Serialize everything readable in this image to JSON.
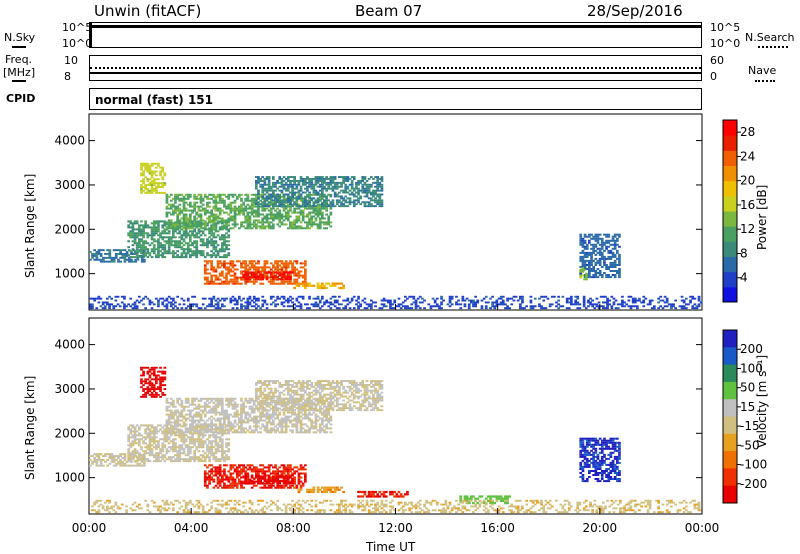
{
  "header": {
    "station": "Unwin (fitACF)",
    "beam": "Beam 07",
    "date": "28/Sep/2016"
  },
  "summary": {
    "nsky_label": "N.Sky",
    "nsky_ticks": [
      "10^5",
      "10^0"
    ],
    "nsearch_label": "N.Search",
    "nsearch_ticks": [
      "10^5",
      "10^0"
    ],
    "freq_label": "Freq.",
    "freq_unit": "[MHz]",
    "freq_ticks": [
      "10",
      "8"
    ],
    "nave_label": "Nave",
    "nave_ticks": [
      "60",
      "0"
    ],
    "cpid_label": "CPID",
    "cpid_value": "normal (fast) 151"
  },
  "colors": {
    "power_scale": [
      "#1010e0",
      "#1e40c8",
      "#2a6aa8",
      "#3a8a7a",
      "#4aa060",
      "#7ab840",
      "#c8d020",
      "#f0c000",
      "#f09000",
      "#f06000",
      "#e82000",
      "#ff0000"
    ],
    "velocity_scale": [
      "#2020c0",
      "#1a5ac8",
      "#2a8a5a",
      "#60c040",
      "#c0c0c0",
      "#d0c080",
      "#e8a020",
      "#f07000",
      "#f03000",
      "#e80000"
    ]
  },
  "chart_data": [
    {
      "type": "heatmap",
      "name": "power",
      "xlabel": "",
      "ylabel": "Slant Range [km]",
      "xlim": [
        "00:00",
        "24:00"
      ],
      "ylim": [
        180,
        4600
      ],
      "yticks": [
        "1000",
        "2000",
        "3000",
        "4000"
      ],
      "colorbar": {
        "label": "Power [dB]",
        "ticks": [
          "4",
          "8",
          "12",
          "16",
          "20",
          "24",
          "28"
        ],
        "range": [
          0,
          30
        ]
      },
      "features": [
        {
          "desc": "band",
          "t0": 0.0,
          "t1": 2.2,
          "r0": 1250,
          "r1": 1550,
          "value": 7
        },
        {
          "desc": "band",
          "t0": 1.5,
          "t1": 5.5,
          "r0": 1350,
          "r1": 2200,
          "value": 10
        },
        {
          "desc": "band",
          "t0": 3.0,
          "t1": 9.5,
          "r0": 2000,
          "r1": 2800,
          "value": 12
        },
        {
          "desc": "band",
          "t0": 6.5,
          "t1": 11.5,
          "r0": 2500,
          "r1": 3200,
          "value": 8
        },
        {
          "desc": "band",
          "t0": 2.0,
          "t1": 3.0,
          "r0": 2800,
          "r1": 3500,
          "value": 16
        },
        {
          "desc": "band",
          "t0": 4.5,
          "t1": 8.5,
          "r0": 750,
          "r1": 1300,
          "value": 24
        },
        {
          "desc": "band",
          "t0": 6.0,
          "t1": 8.0,
          "r0": 850,
          "r1": 1050,
          "value": 28
        },
        {
          "desc": "band",
          "t0": 8.0,
          "t1": 10.0,
          "r0": 650,
          "r1": 800,
          "value": 20
        },
        {
          "desc": "band",
          "t0": 19.2,
          "t1": 20.8,
          "r0": 900,
          "r1": 1900,
          "value": 6
        },
        {
          "desc": "band",
          "t0": 19.2,
          "t1": 19.5,
          "r0": 850,
          "r1": 1150,
          "value": 14
        },
        {
          "desc": "band",
          "t0": 0.0,
          "t1": 24.0,
          "r0": 200,
          "r1": 500,
          "value": 4
        }
      ]
    },
    {
      "type": "heatmap",
      "name": "velocity",
      "xlabel": "Time UT",
      "ylabel": "Slant Range [km]",
      "xlim": [
        "00:00",
        "24:00"
      ],
      "xticks": [
        "00:00",
        "04:00",
        "08:00",
        "12:00",
        "16:00",
        "20:00",
        "00:00"
      ],
      "ylim": [
        180,
        4600
      ],
      "yticks": [
        "1000",
        "2000",
        "3000",
        "4000"
      ],
      "colorbar": {
        "label": "Velocity [m s⁻¹]",
        "ticks": [
          "200",
          "100",
          "50",
          "15",
          "-15",
          "-50",
          "-100",
          "-200"
        ],
        "range": [
          -250,
          250
        ]
      },
      "features": [
        {
          "desc": "band",
          "t0": 0.0,
          "t1": 2.2,
          "r0": 1250,
          "r1": 1550,
          "value": 0
        },
        {
          "desc": "band",
          "t0": 1.5,
          "t1": 5.5,
          "r0": 1350,
          "r1": 2200,
          "value": 0
        },
        {
          "desc": "band",
          "t0": 3.0,
          "t1": 9.5,
          "r0": 2000,
          "r1": 2800,
          "value": 5
        },
        {
          "desc": "band",
          "t0": 6.5,
          "t1": 11.5,
          "r0": 2500,
          "r1": 3200,
          "value": 0
        },
        {
          "desc": "band",
          "t0": 2.0,
          "t1": 3.0,
          "r0": 2800,
          "r1": 3500,
          "value": -220
        },
        {
          "desc": "band",
          "t0": 4.5,
          "t1": 8.5,
          "r0": 750,
          "r1": 1300,
          "value": -200
        },
        {
          "desc": "band",
          "t0": 6.0,
          "t1": 8.0,
          "r0": 850,
          "r1": 1050,
          "value": -220
        },
        {
          "desc": "band",
          "t0": 8.0,
          "t1": 10.0,
          "r0": 650,
          "r1": 800,
          "value": -90
        },
        {
          "desc": "band",
          "t0": 10.5,
          "t1": 12.5,
          "r0": 550,
          "r1": 700,
          "value": -200
        },
        {
          "desc": "band",
          "t0": 14.5,
          "t1": 16.5,
          "r0": 400,
          "r1": 600,
          "value": 80
        },
        {
          "desc": "band",
          "t0": 19.2,
          "t1": 20.8,
          "r0": 900,
          "r1": 1900,
          "value": 210
        },
        {
          "desc": "band",
          "t0": 0.0,
          "t1": 24.0,
          "r0": 200,
          "r1": 500,
          "value": -40
        }
      ]
    }
  ]
}
